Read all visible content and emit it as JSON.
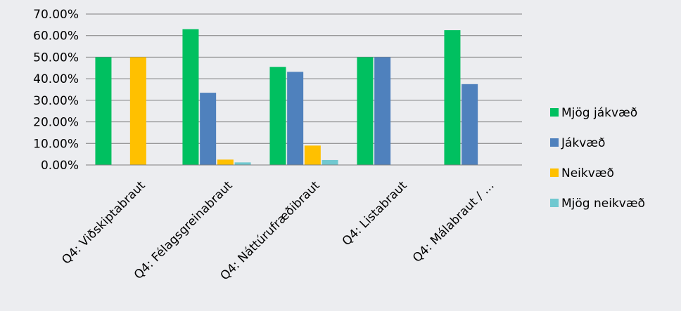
{
  "chart_data": {
    "type": "bar",
    "categories": [
      "Q4: Viðskiptabraut",
      "Q4: Félagsgreinabraut",
      "Q4: Náttúrufræðibraut",
      "Q4: Listabraut",
      "Q4: Málabraut / …"
    ],
    "series": [
      {
        "name": "Mjög jákvæð",
        "color": "#00c060",
        "values": [
          50.0,
          63.0,
          45.5,
          50.0,
          62.5
        ]
      },
      {
        "name": "Jákvæð",
        "color": "#4f81bd",
        "values": [
          0.0,
          33.5,
          43.2,
          50.0,
          37.5
        ]
      },
      {
        "name": "Neikvæð",
        "color": "#ffc000",
        "values": [
          50.0,
          2.5,
          9.0,
          0.0,
          0.0
        ]
      },
      {
        "name": "Mjög neikvæð",
        "color": "#70c8d0",
        "values": [
          0.0,
          1.2,
          2.3,
          0.0,
          0.0
        ]
      }
    ],
    "yticks": [
      "0.00%",
      "10.00%",
      "20.00%",
      "30.00%",
      "40.00%",
      "50.00%",
      "60.00%",
      "70.00%"
    ],
    "ylim": [
      0,
      70
    ],
    "grid": true,
    "legend_position": "right",
    "title": "",
    "xlabel": "",
    "ylabel": ""
  }
}
